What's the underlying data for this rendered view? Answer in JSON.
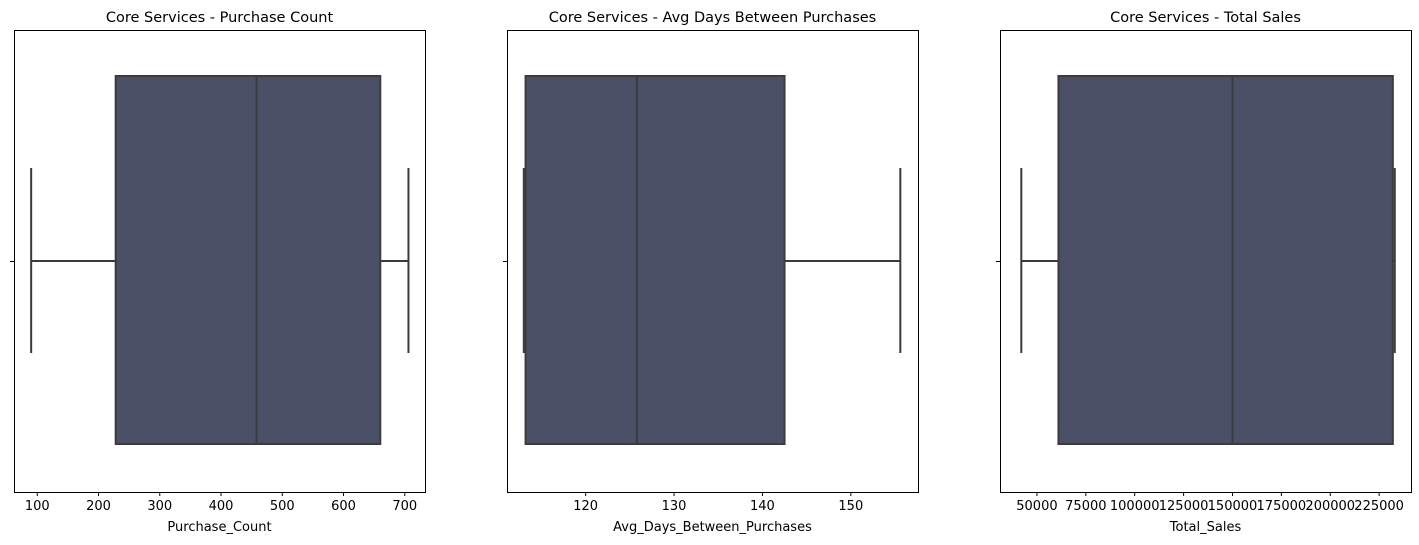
{
  "colors": {
    "box_fill": "#4c5066",
    "line": "#3b3b3b",
    "axis": "#000000"
  },
  "chart_data": [
    {
      "type": "box",
      "title": "Core Services - Purchase Count",
      "xlabel": "Purchase_Count",
      "xlim": [
        62,
        733
      ],
      "ticks": [
        100,
        200,
        300,
        400,
        500,
        600,
        700
      ],
      "tick_labels": [
        "100",
        "200",
        "300",
        "400",
        "500",
        "600",
        "700"
      ],
      "stats": {
        "min": 90,
        "q1": 228,
        "median": 458,
        "q3": 660,
        "max": 706
      }
    },
    {
      "type": "box",
      "title": "Core Services - Avg Days Between Purchases",
      "xlabel": "Avg_Days_Between_Purchases",
      "xlim": [
        111.1,
        157.6
      ],
      "ticks": [
        120,
        130,
        140,
        150
      ],
      "tick_labels": [
        "120",
        "130",
        "140",
        "150"
      ],
      "stats": {
        "min": 113.0,
        "q1": 113.2,
        "median": 125.8,
        "q3": 142.5,
        "max": 155.6
      }
    },
    {
      "type": "box",
      "title": "Core Services - Total Sales",
      "xlabel": "Total_Sales",
      "xlim": [
        31100,
        241300
      ],
      "ticks": [
        50000,
        75000,
        100000,
        125000,
        150000,
        175000,
        200000,
        225000
      ],
      "tick_labels": [
        "50000",
        "75000",
        "100000",
        "125000",
        "150000",
        "175000",
        "200000",
        "225000"
      ],
      "stats": {
        "min": 42000,
        "q1": 61000,
        "median": 150000,
        "q3": 232000,
        "max": 233000
      }
    }
  ]
}
